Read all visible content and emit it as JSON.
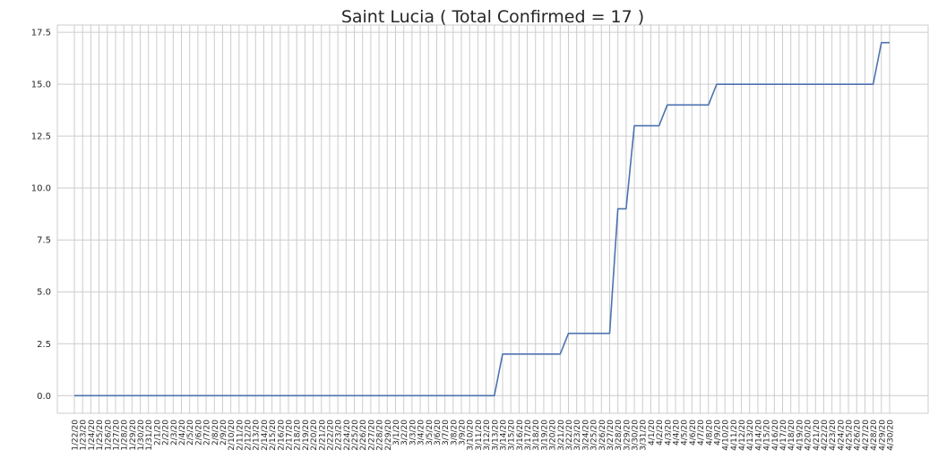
{
  "chart_data": {
    "type": "line",
    "title": "Saint Lucia ( Total Confirmed = 17 )",
    "xlabel": "",
    "ylabel": "",
    "grid": true,
    "legend": "none",
    "ylim": [
      -0.85,
      17.85
    ],
    "yticks": [
      0.0,
      2.5,
      5.0,
      7.5,
      10.0,
      12.5,
      15.0,
      17.5
    ],
    "categories": [
      "1/22/20",
      "1/23/20",
      "1/24/20",
      "1/25/20",
      "1/26/20",
      "1/27/20",
      "1/28/20",
      "1/29/20",
      "1/30/20",
      "1/31/20",
      "2/1/20",
      "2/2/20",
      "2/3/20",
      "2/4/20",
      "2/5/20",
      "2/6/20",
      "2/7/20",
      "2/8/20",
      "2/9/20",
      "2/10/20",
      "2/11/20",
      "2/12/20",
      "2/13/20",
      "2/14/20",
      "2/15/20",
      "2/16/20",
      "2/17/20",
      "2/18/20",
      "2/19/20",
      "2/20/20",
      "2/21/20",
      "2/22/20",
      "2/23/20",
      "2/24/20",
      "2/25/20",
      "2/26/20",
      "2/27/20",
      "2/28/20",
      "2/29/20",
      "3/1/20",
      "3/2/20",
      "3/3/20",
      "3/4/20",
      "3/5/20",
      "3/6/20",
      "3/7/20",
      "3/8/20",
      "3/9/20",
      "3/10/20",
      "3/11/20",
      "3/12/20",
      "3/13/20",
      "3/14/20",
      "3/15/20",
      "3/16/20",
      "3/17/20",
      "3/18/20",
      "3/19/20",
      "3/20/20",
      "3/21/20",
      "3/22/20",
      "3/23/20",
      "3/24/20",
      "3/25/20",
      "3/26/20",
      "3/27/20",
      "3/28/20",
      "3/29/20",
      "3/30/20",
      "3/31/20",
      "4/1/20",
      "4/2/20",
      "4/3/20",
      "4/4/20",
      "4/5/20",
      "4/6/20",
      "4/7/20",
      "4/8/20",
      "4/9/20",
      "4/10/20",
      "4/11/20",
      "4/12/20",
      "4/13/20",
      "4/14/20",
      "4/15/20",
      "4/16/20",
      "4/17/20",
      "4/18/20",
      "4/19/20",
      "4/20/20",
      "4/21/20",
      "4/22/20",
      "4/23/20",
      "4/24/20",
      "4/25/20",
      "4/26/20",
      "4/27/20",
      "4/28/20",
      "4/29/20",
      "4/30/20"
    ],
    "series": [
      {
        "values": [
          0,
          0,
          0,
          0,
          0,
          0,
          0,
          0,
          0,
          0,
          0,
          0,
          0,
          0,
          0,
          0,
          0,
          0,
          0,
          0,
          0,
          0,
          0,
          0,
          0,
          0,
          0,
          0,
          0,
          0,
          0,
          0,
          0,
          0,
          0,
          0,
          0,
          0,
          0,
          0,
          0,
          0,
          0,
          0,
          0,
          0,
          0,
          0,
          0,
          0,
          0,
          0,
          2,
          2,
          2,
          2,
          2,
          2,
          2,
          2,
          3,
          3,
          3,
          3,
          3,
          3,
          9,
          9,
          13,
          13,
          13,
          13,
          14,
          14,
          14,
          14,
          14,
          14,
          15,
          15,
          15,
          15,
          15,
          15,
          15,
          15,
          15,
          15,
          15,
          15,
          15,
          15,
          15,
          15,
          15,
          15,
          15,
          15,
          17,
          17
        ],
        "color": "#4c72b0"
      }
    ],
    "colors": {
      "grid": "#cccccc",
      "axis": "#cccccc",
      "text": "#262626",
      "line": "#4c72b0"
    }
  }
}
